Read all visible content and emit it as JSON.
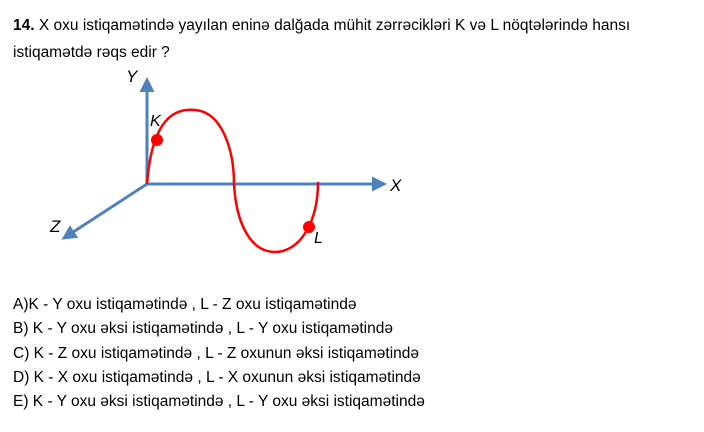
{
  "question": {
    "number": "14.",
    "text": "X oxu istiqamətində yayılan eninə dalğada  mühit zərrəcikləri K və L nöqtələrində hansı istiqamətdə rəqs edir ?"
  },
  "figure": {
    "axis_y_label": "Y",
    "axis_x_label": "X",
    "axis_z_label": "Z",
    "point_k_label": "K",
    "point_l_label": "L",
    "axis_color": "#4f81bd",
    "wave_color": "#ff0000"
  },
  "answers": [
    "A)K - Y oxu istiqamətində , L - Z oxu istiqamətində",
    "B) K - Y oxu əksi istiqamətində , L - Y oxu istiqamətində",
    "C) K - Z oxu istiqamətində , L - Z oxunun əksi istiqamətində",
    "D) K - X oxu istiqamətində , L - X oxunun əksi istiqamətində",
    "E) K - Y oxu  əksi istiqamətində , L - Y oxu əksi istiqamətində"
  ]
}
